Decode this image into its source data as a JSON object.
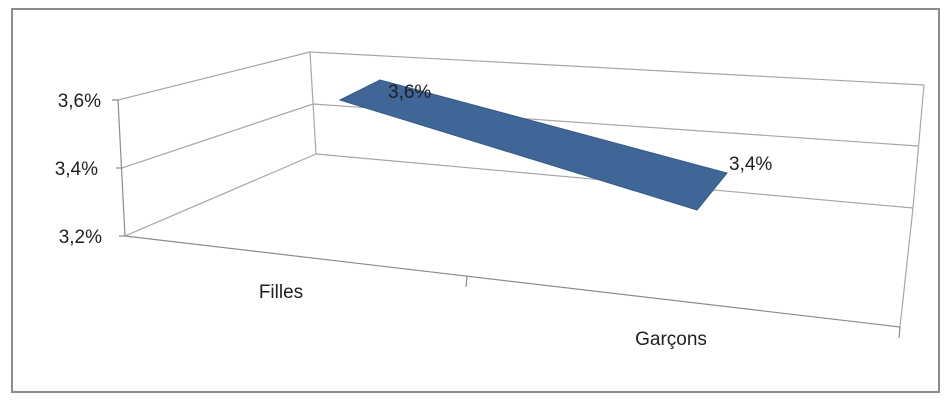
{
  "chart_data": {
    "type": "area",
    "categories": [
      "Filles",
      "Garçons"
    ],
    "series": [
      {
        "values": [
          3.6,
          3.4
        ],
        "color": "#3f6697",
        "data_labels": [
          "3,6%",
          "3,4%"
        ]
      }
    ],
    "y_ticks": [
      {
        "value": 3.2,
        "label": "3,2%"
      },
      {
        "value": 3.4,
        "label": "3,4%"
      },
      {
        "value": 3.6,
        "label": "3,6%"
      }
    ],
    "ylim": [
      3.2,
      3.6
    ],
    "grid": true,
    "legend": "none",
    "style": "3d-area",
    "title": "",
    "xlabel": "",
    "ylabel": ""
  }
}
